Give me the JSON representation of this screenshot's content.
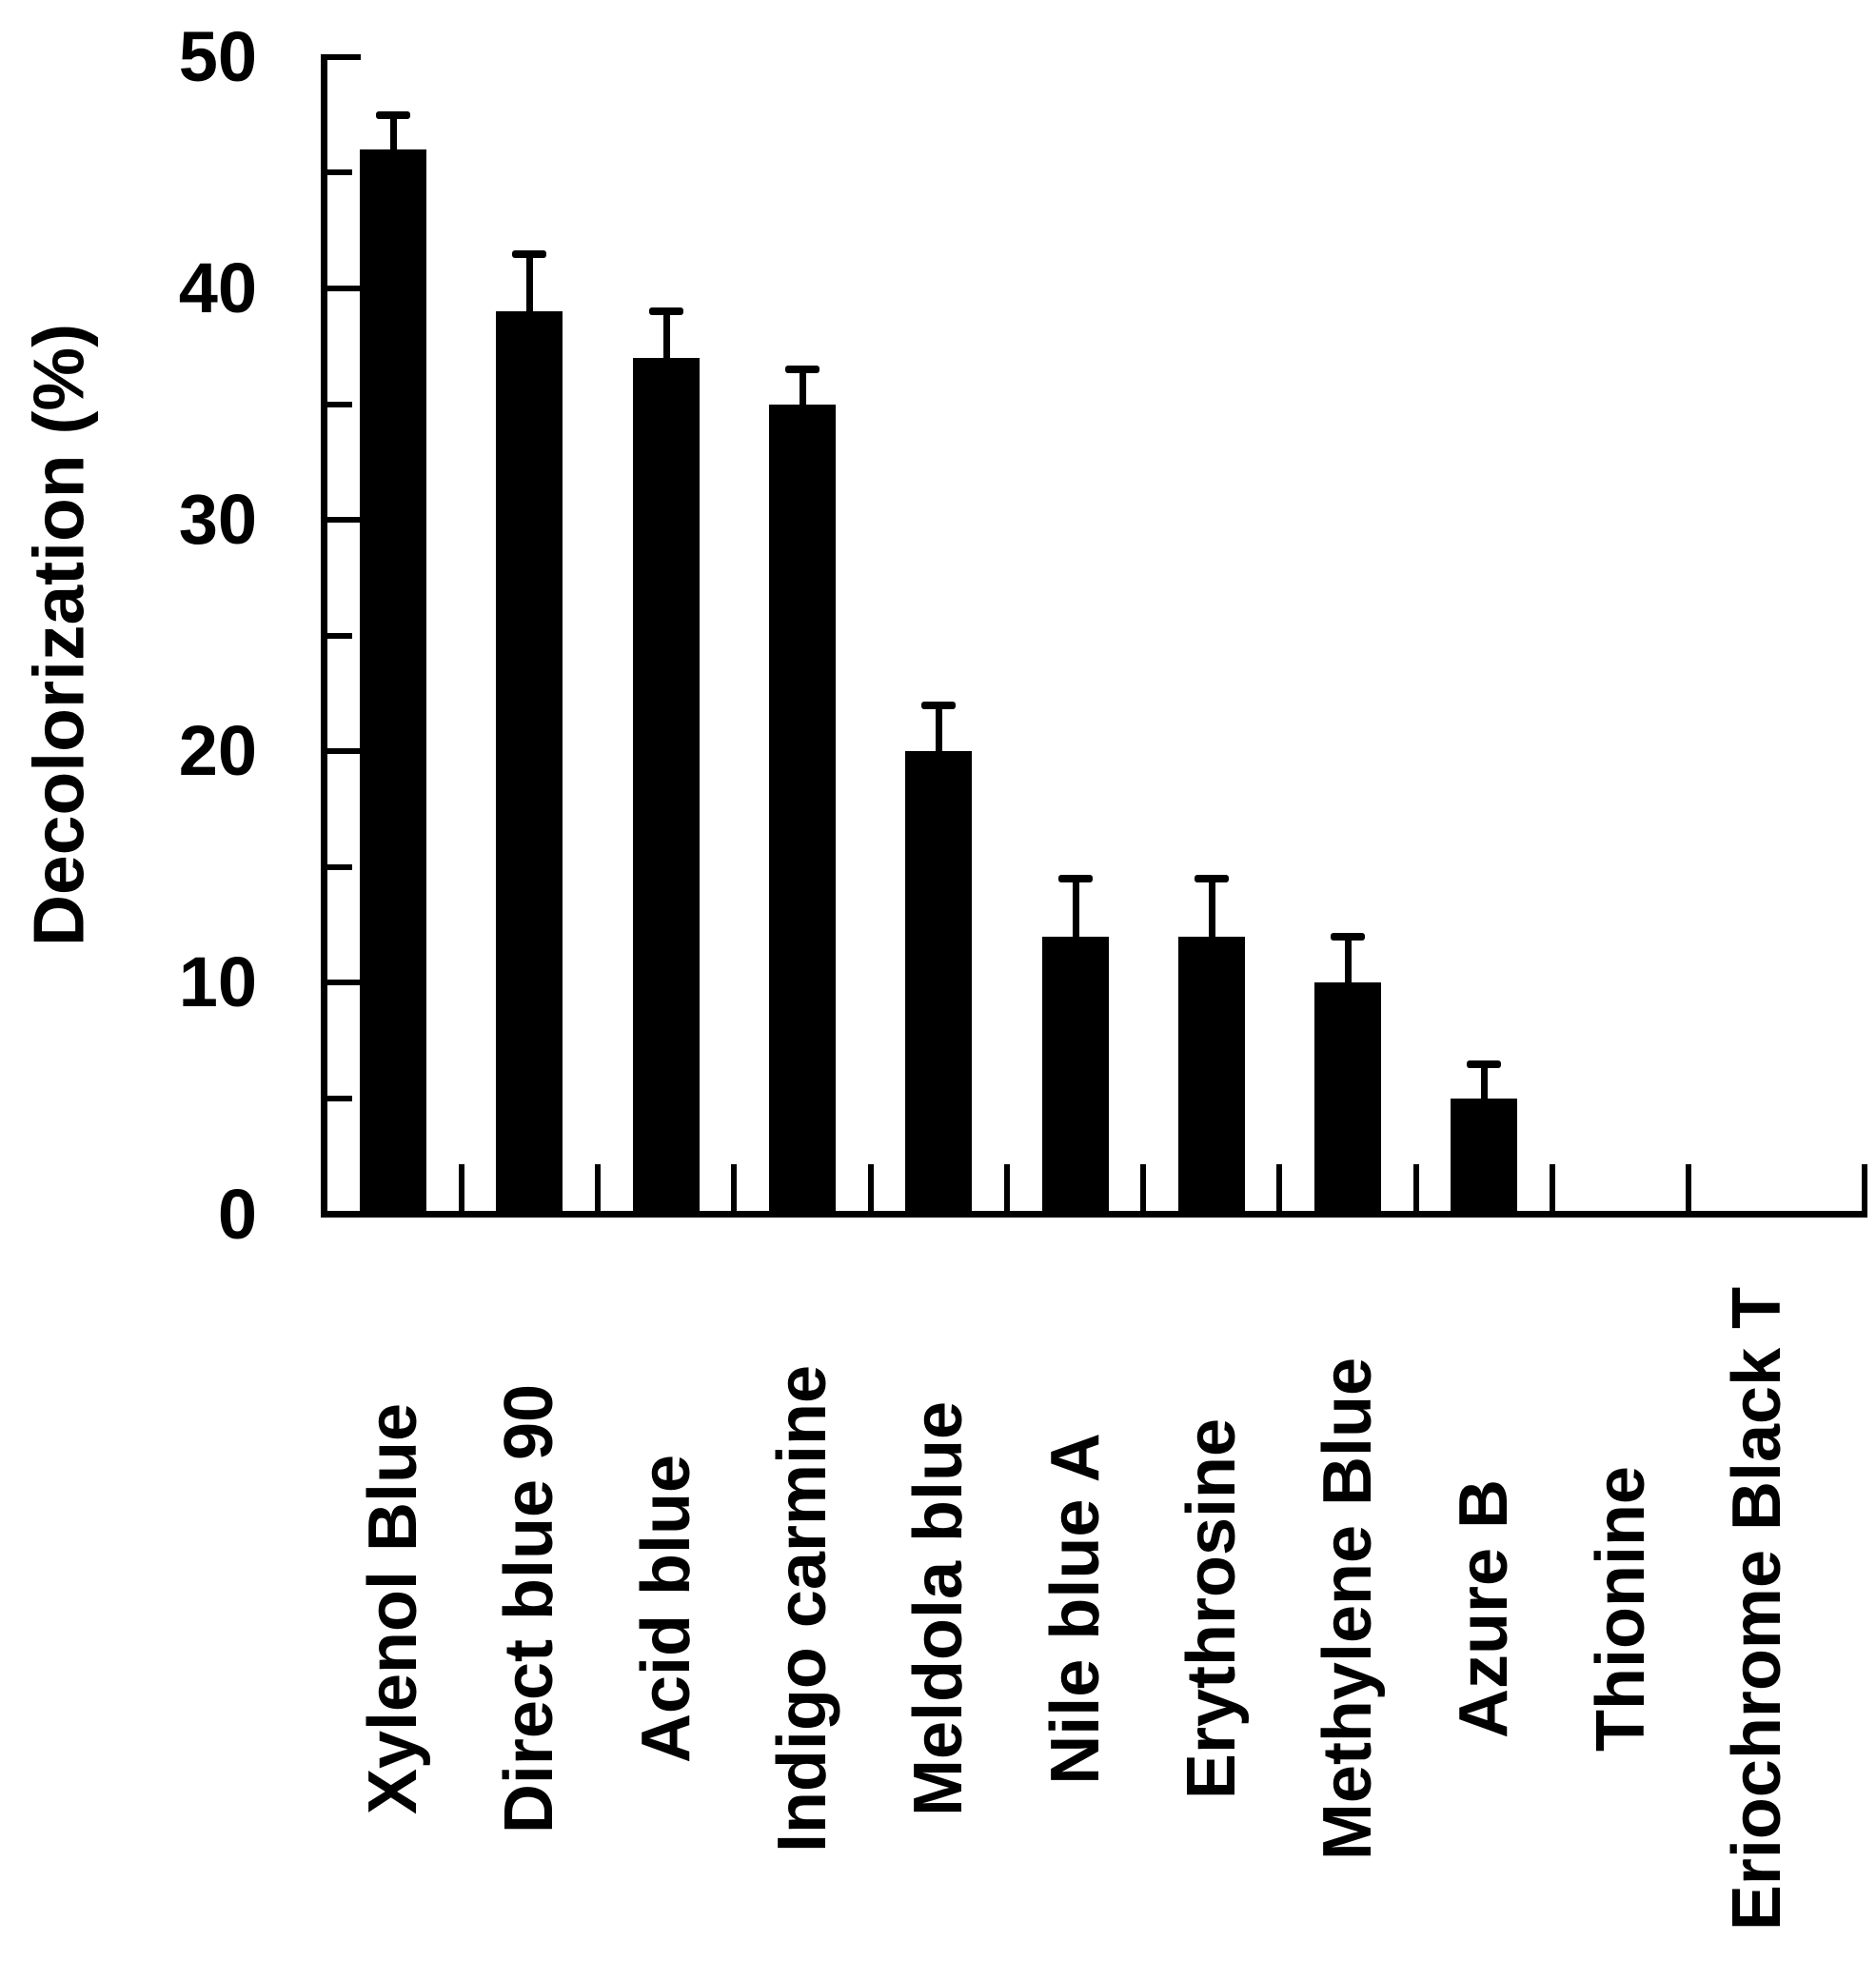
{
  "figure": {
    "background_color": "#ffffff",
    "bar_color": "#000000",
    "axis_color": "#000000",
    "text_color": "#000000"
  },
  "chart_data": {
    "type": "bar",
    "title": "",
    "xlabel": "",
    "ylabel": "Decolorization (%)",
    "categories": [
      "Xylenol Blue",
      "Direct blue 90",
      "Acid blue",
      "Indigo carmine",
      "Meldola blue",
      "Nile blue A",
      "Erythrosine",
      "Methylene Blue",
      "Azure B",
      "Thionine",
      "Eriochrome Black T"
    ],
    "values": [
      46,
      39,
      37,
      35,
      20,
      12,
      12,
      10,
      5,
      0,
      0
    ],
    "errors_plus": [
      1.5,
      2.5,
      2.0,
      1.5,
      2.0,
      2.5,
      2.5,
      2.0,
      1.5,
      0,
      0
    ],
    "error_direction": "up",
    "ylim": [
      0,
      50
    ],
    "yticks_major": [
      0,
      10,
      20,
      30,
      40,
      50
    ],
    "yticks_minor": [
      5,
      15,
      25,
      35,
      45
    ],
    "grid": false,
    "legend": null,
    "bar_fill": "#000000",
    "series_name": "Decolorization"
  }
}
